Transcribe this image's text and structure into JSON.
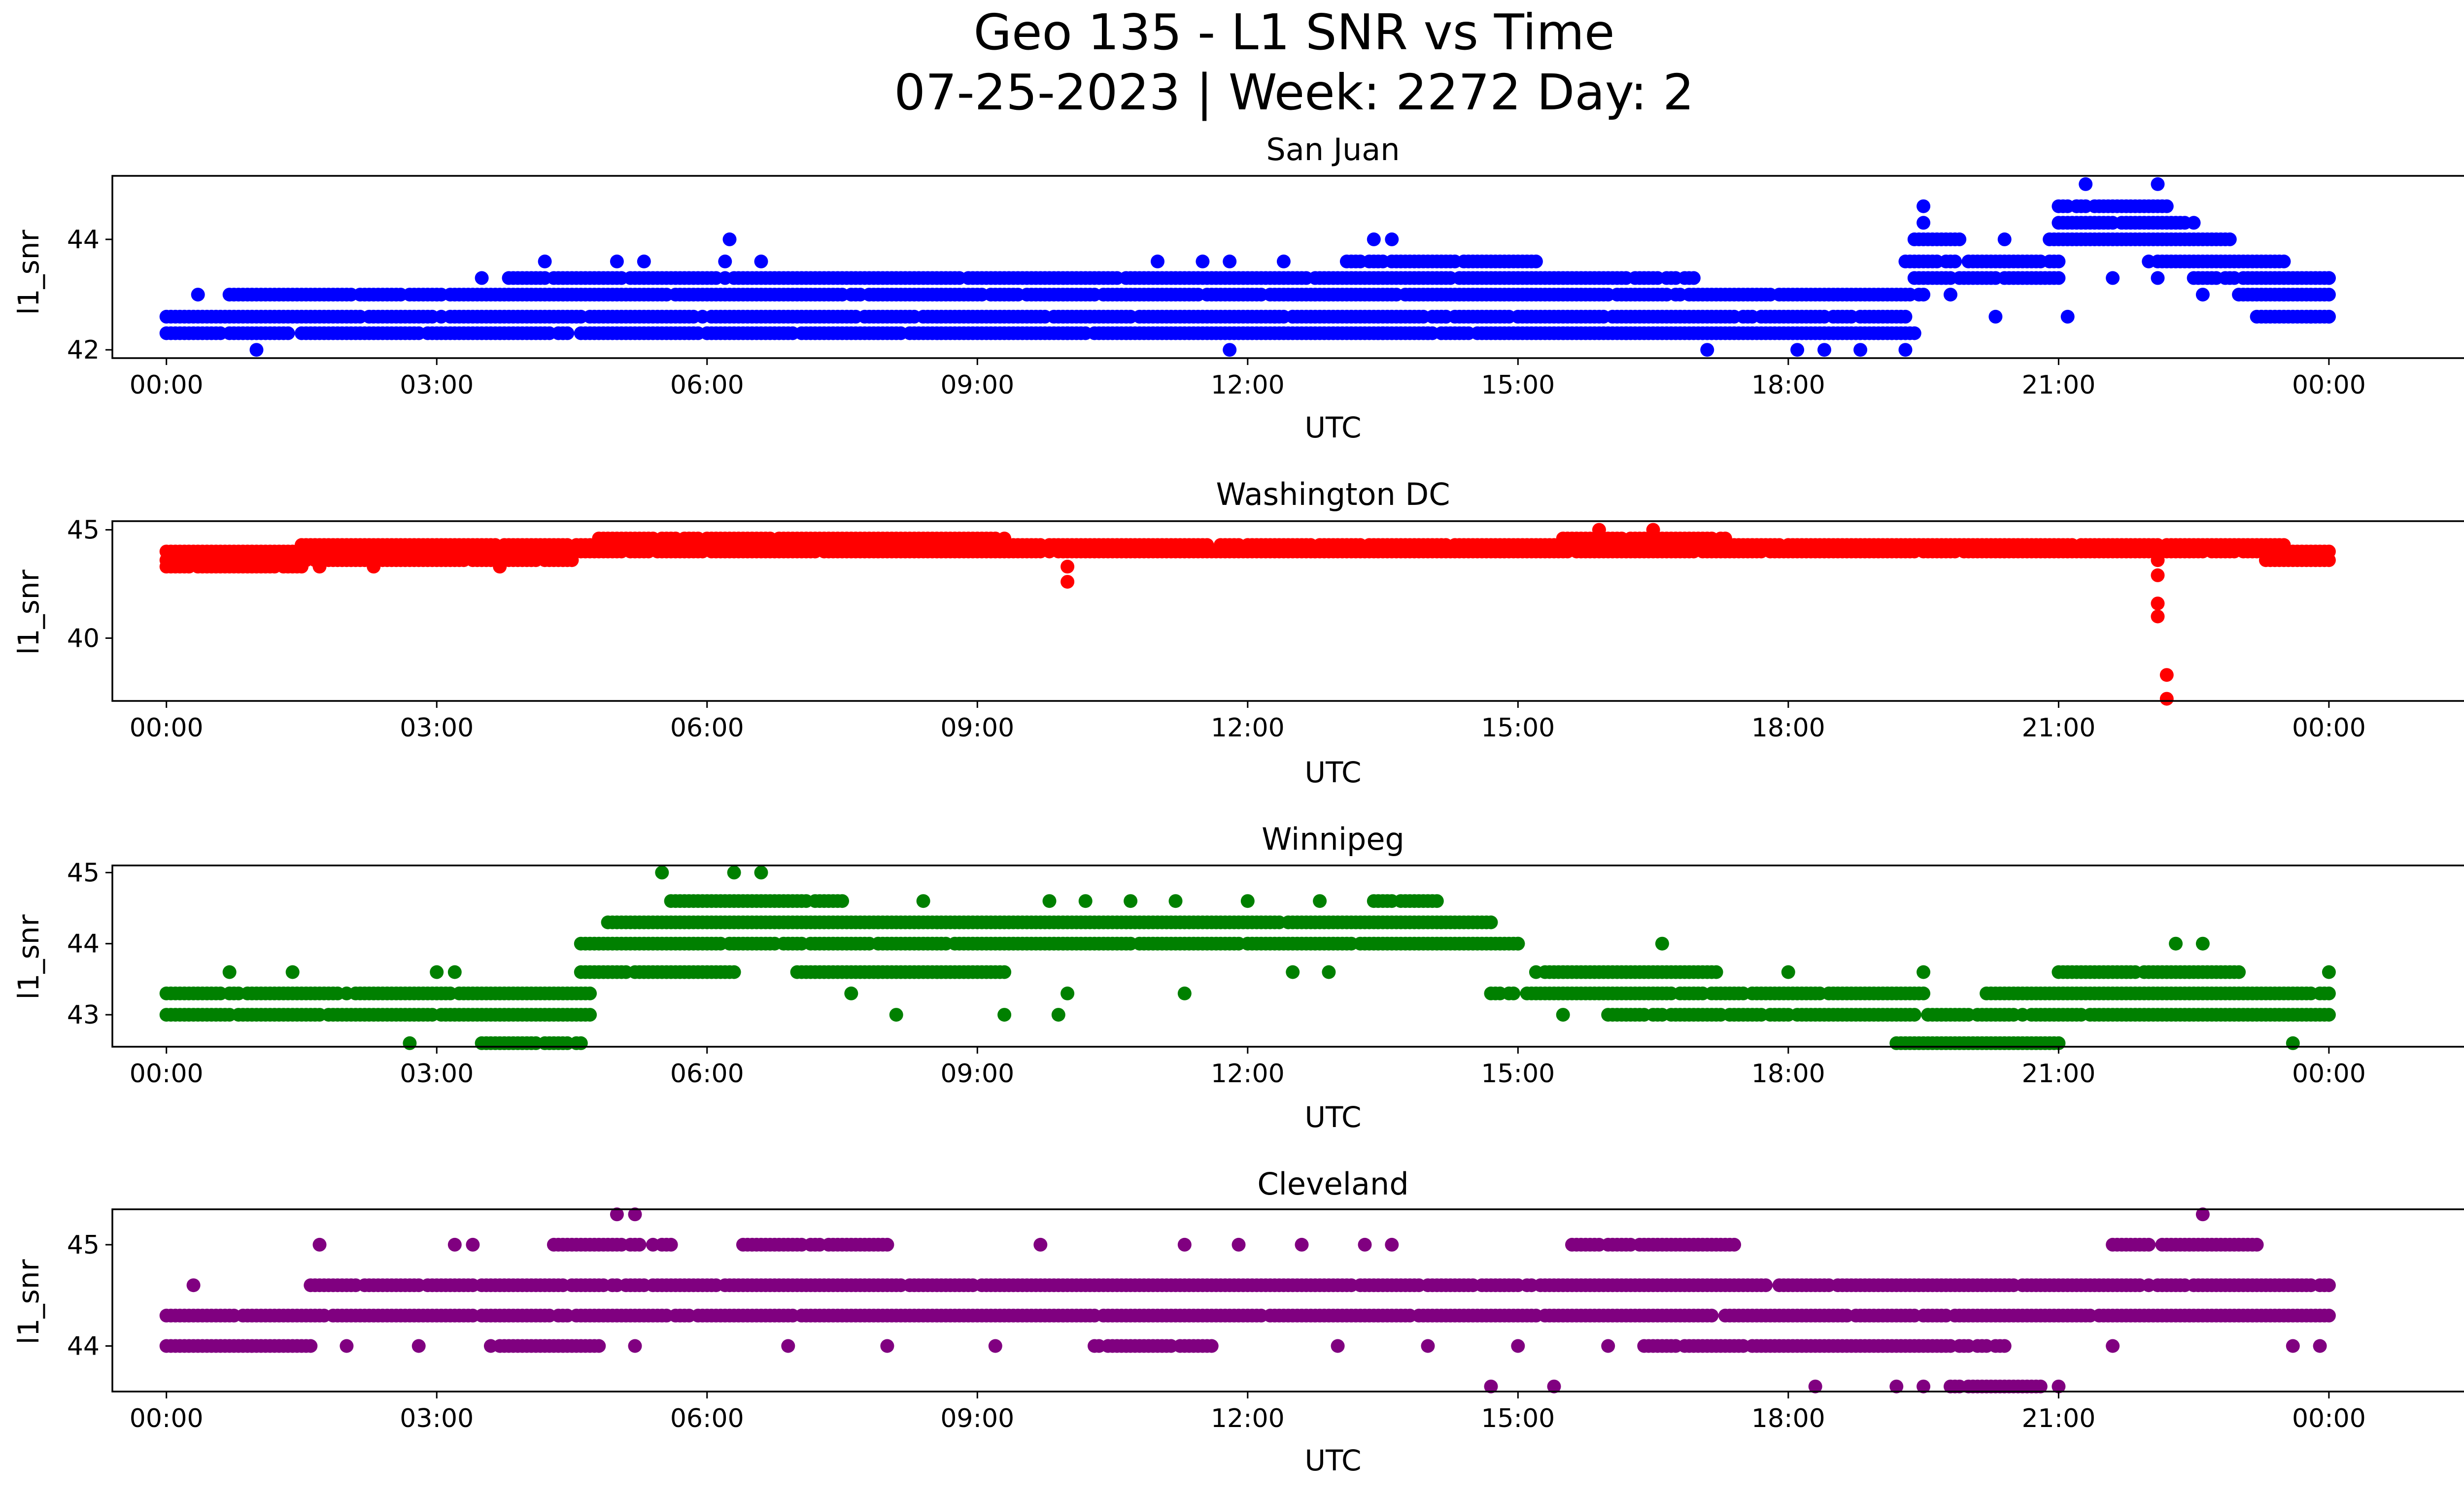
{
  "figure": {
    "title_line1": "Geo 135 - L1 SNR vs Time",
    "title_line2": "07-25-2023 | Week: 2272 Day: 2"
  },
  "chart_data": [
    {
      "type": "scatter",
      "title": "San Juan",
      "xlabel": "UTC",
      "ylabel": "l1_snr",
      "color": "#0000ff",
      "xlim": [
        -0.6,
        26.5
      ],
      "ylim": [
        41.85,
        45.15
      ],
      "xticks": [
        "00:00",
        "03:00",
        "06:00",
        "09:00",
        "12:00",
        "15:00",
        "18:00",
        "21:00",
        "00:00"
      ],
      "xtick_values": [
        0,
        3,
        6,
        9,
        12,
        15,
        18,
        21,
        24
      ],
      "yticks": [
        42,
        44
      ],
      "levels": [
        42.3,
        42.6,
        43.0,
        43.3,
        43.6,
        44.0,
        44.3,
        44.6,
        45.0
      ],
      "bands": [
        {
          "y": 42.3,
          "from": 0.0,
          "to": 19.4
        },
        {
          "y": 42.6,
          "from": 0.0,
          "to": 19.3
        },
        {
          "y": 42.6,
          "from": 23.2,
          "to": 24.0
        },
        {
          "y": 43.0,
          "from": 0.7,
          "to": 19.5
        },
        {
          "y": 43.0,
          "from": 23.0,
          "to": 24.0
        },
        {
          "y": 43.3,
          "from": 3.8,
          "to": 17.0
        },
        {
          "y": 43.3,
          "from": 19.4,
          "to": 21.0
        },
        {
          "y": 43.3,
          "from": 22.5,
          "to": 24.0
        },
        {
          "y": 43.6,
          "from": 13.1,
          "to": 15.2
        },
        {
          "y": 43.6,
          "from": 19.3,
          "to": 21.0
        },
        {
          "y": 43.6,
          "from": 22.0,
          "to": 23.5
        },
        {
          "y": 44.0,
          "from": 19.4,
          "to": 19.9
        },
        {
          "y": 44.0,
          "from": 20.9,
          "to": 22.9
        },
        {
          "y": 44.3,
          "from": 21.0,
          "to": 22.4
        },
        {
          "y": 44.6,
          "from": 21.0,
          "to": 22.2
        }
      ],
      "points": [
        [
          0.35,
          43.0
        ],
        [
          1.0,
          42.0
        ],
        [
          3.5,
          43.3
        ],
        [
          4.2,
          43.6
        ],
        [
          5.0,
          43.6
        ],
        [
          5.3,
          43.6
        ],
        [
          5.3,
          42.3
        ],
        [
          6.0,
          42.3
        ],
        [
          6.25,
          44.0
        ],
        [
          6.2,
          43.6
        ],
        [
          6.6,
          43.6
        ],
        [
          10.0,
          42.3
        ],
        [
          11.0,
          43.6
        ],
        [
          11.5,
          43.6
        ],
        [
          11.8,
          42.0
        ],
        [
          11.8,
          43.6
        ],
        [
          12.3,
          42.6
        ],
        [
          12.5,
          42.6
        ],
        [
          12.4,
          43.6
        ],
        [
          13.4,
          44.0
        ],
        [
          13.6,
          44.0
        ],
        [
          13.5,
          42.3
        ],
        [
          14.0,
          42.3
        ],
        [
          14.2,
          42.6
        ],
        [
          16.2,
          42.3
        ],
        [
          17.1,
          42.0
        ],
        [
          18.1,
          42.0
        ],
        [
          18.4,
          42.0
        ],
        [
          18.8,
          42.0
        ],
        [
          19.3,
          42.0
        ],
        [
          19.5,
          44.6
        ],
        [
          19.5,
          44.3
        ],
        [
          19.8,
          43.0
        ],
        [
          20.4,
          44.0
        ],
        [
          21.2,
          44.6
        ],
        [
          21.3,
          45.0
        ],
        [
          21.6,
          43.3
        ],
        [
          22.1,
          45.0
        ],
        [
          22.1,
          43.3
        ],
        [
          22.5,
          44.3
        ],
        [
          22.6,
          43.0
        ],
        [
          23.5,
          43.0
        ],
        [
          23.8,
          42.6
        ],
        [
          24.0,
          43.3
        ],
        [
          24.0,
          42.6
        ],
        [
          20.3,
          42.6
        ],
        [
          21.1,
          42.6
        ]
      ]
    },
    {
      "type": "scatter",
      "title": "Washington DC",
      "xlabel": "UTC",
      "ylabel": "l1_snr",
      "color": "#ff0000",
      "xlim": [
        -0.6,
        26.5
      ],
      "ylim": [
        37.1,
        45.4
      ],
      "xticks": [
        "00:00",
        "03:00",
        "06:00",
        "09:00",
        "12:00",
        "15:00",
        "18:00",
        "21:00",
        "00:00"
      ],
      "xtick_values": [
        0,
        3,
        6,
        9,
        12,
        15,
        18,
        21,
        24
      ],
      "yticks": [
        40,
        45
      ],
      "levels": [
        43.3,
        43.6,
        44.0,
        44.3,
        44.6
      ],
      "bands": [
        {
          "y": 43.3,
          "from": 0.0,
          "to": 1.5
        },
        {
          "y": 43.6,
          "from": 0.0,
          "to": 4.5
        },
        {
          "y": 43.6,
          "from": 23.3,
          "to": 24.0
        },
        {
          "y": 44.0,
          "from": 0.0,
          "to": 24.0
        },
        {
          "y": 44.3,
          "from": 1.5,
          "to": 23.5
        },
        {
          "y": 44.6,
          "from": 4.8,
          "to": 9.3
        },
        {
          "y": 44.6,
          "from": 15.5,
          "to": 17.3
        }
      ],
      "points": [
        [
          10.0,
          42.6
        ],
        [
          10.0,
          43.3
        ],
        [
          15.9,
          45.0
        ],
        [
          16.5,
          45.0
        ],
        [
          22.1,
          43.6
        ],
        [
          22.1,
          42.9
        ],
        [
          22.1,
          41.6
        ],
        [
          22.1,
          41.0
        ],
        [
          22.2,
          38.3
        ],
        [
          22.2,
          37.2
        ],
        [
          1.7,
          43.3
        ],
        [
          2.3,
          43.3
        ],
        [
          3.7,
          43.3
        ]
      ]
    },
    {
      "type": "scatter",
      "title": "Winnipeg",
      "xlabel": "UTC",
      "ylabel": "l1_snr",
      "color": "#008000",
      "xlim": [
        -0.6,
        26.5
      ],
      "ylim": [
        42.55,
        45.1
      ],
      "xticks": [
        "00:00",
        "03:00",
        "06:00",
        "09:00",
        "12:00",
        "15:00",
        "18:00",
        "21:00",
        "00:00"
      ],
      "xtick_values": [
        0,
        3,
        6,
        9,
        12,
        15,
        18,
        21,
        24
      ],
      "yticks": [
        43,
        44,
        45
      ],
      "levels": [
        42.6,
        43.0,
        43.3,
        43.6,
        44.0,
        44.3,
        44.6,
        45.0
      ],
      "bands": [
        {
          "y": 42.6,
          "from": 3.5,
          "to": 4.6
        },
        {
          "y": 42.6,
          "from": 19.2,
          "to": 21.0
        },
        {
          "y": 43.0,
          "from": 0.0,
          "to": 4.7
        },
        {
          "y": 43.0,
          "from": 16.0,
          "to": 24.0
        },
        {
          "y": 43.3,
          "from": 0.0,
          "to": 4.7
        },
        {
          "y": 43.3,
          "from": 14.7,
          "to": 19.5
        },
        {
          "y": 43.3,
          "from": 20.2,
          "to": 24.0
        },
        {
          "y": 43.6,
          "from": 4.6,
          "to": 6.3
        },
        {
          "y": 43.6,
          "from": 7.0,
          "to": 9.3
        },
        {
          "y": 43.6,
          "from": 15.2,
          "to": 17.2
        },
        {
          "y": 43.6,
          "from": 21.0,
          "to": 23.0
        },
        {
          "y": 44.0,
          "from": 4.6,
          "to": 15.0
        },
        {
          "y": 44.3,
          "from": 4.9,
          "to": 14.7
        },
        {
          "y": 44.6,
          "from": 5.6,
          "to": 7.5
        },
        {
          "y": 44.6,
          "from": 13.4,
          "to": 14.1
        }
      ],
      "points": [
        [
          0.7,
          43.6
        ],
        [
          1.4,
          43.6
        ],
        [
          2.7,
          42.6
        ],
        [
          3.0,
          43.6
        ],
        [
          3.2,
          43.6
        ],
        [
          5.5,
          45.0
        ],
        [
          6.3,
          45.0
        ],
        [
          6.6,
          45.0
        ],
        [
          8.4,
          44.6
        ],
        [
          9.8,
          44.6
        ],
        [
          10.2,
          44.6
        ],
        [
          10.7,
          44.6
        ],
        [
          11.2,
          44.6
        ],
        [
          12.0,
          44.6
        ],
        [
          12.8,
          44.6
        ],
        [
          8.1,
          43.0
        ],
        [
          9.3,
          43.0
        ],
        [
          9.9,
          43.0
        ],
        [
          10.0,
          43.3
        ],
        [
          7.6,
          43.3
        ],
        [
          11.3,
          43.3
        ],
        [
          12.5,
          43.6
        ],
        [
          12.9,
          43.6
        ],
        [
          15.0,
          44.0
        ],
        [
          15.5,
          43.0
        ],
        [
          16.6,
          44.0
        ],
        [
          22.3,
          44.0
        ],
        [
          22.6,
          44.0
        ],
        [
          23.6,
          42.6
        ],
        [
          24.0,
          43.6
        ],
        [
          18.0,
          43.6
        ],
        [
          19.5,
          43.6
        ]
      ]
    },
    {
      "type": "scatter",
      "title": "Cleveland",
      "xlabel": "UTC",
      "ylabel": "l1_snr",
      "color": "#800080",
      "xlim": [
        -0.6,
        26.5
      ],
      "ylim": [
        43.55,
        45.35
      ],
      "xticks": [
        "00:00",
        "03:00",
        "06:00",
        "09:00",
        "12:00",
        "15:00",
        "18:00",
        "21:00",
        "00:00"
      ],
      "xtick_values": [
        0,
        3,
        6,
        9,
        12,
        15,
        18,
        21,
        24
      ],
      "yticks": [
        44,
        45
      ],
      "levels": [
        43.6,
        44.0,
        44.3,
        44.6,
        45.0
      ],
      "bands": [
        {
          "y": 44.0,
          "from": 0.0,
          "to": 1.6
        },
        {
          "y": 44.0,
          "from": 3.6,
          "to": 4.8
        },
        {
          "y": 44.0,
          "from": 10.3,
          "to": 11.6
        },
        {
          "y": 44.0,
          "from": 16.4,
          "to": 20.4
        },
        {
          "y": 44.3,
          "from": 0.0,
          "to": 24.0
        },
        {
          "y": 44.6,
          "from": 1.6,
          "to": 24.0
        },
        {
          "y": 45.0,
          "from": 4.3,
          "to": 5.6
        },
        {
          "y": 45.0,
          "from": 6.4,
          "to": 8.0
        },
        {
          "y": 45.0,
          "from": 15.6,
          "to": 17.4
        },
        {
          "y": 45.0,
          "from": 21.6,
          "to": 23.2
        },
        {
          "y": 43.6,
          "from": 19.8,
          "to": 20.8
        }
      ],
      "points": [
        [
          0.3,
          44.6
        ],
        [
          1.7,
          45.0
        ],
        [
          3.2,
          45.0
        ],
        [
          3.4,
          45.0
        ],
        [
          5.0,
          45.3
        ],
        [
          5.2,
          45.3
        ],
        [
          5.2,
          44.0
        ],
        [
          9.2,
          44.0
        ],
        [
          9.7,
          45.0
        ],
        [
          11.3,
          45.0
        ],
        [
          11.9,
          45.0
        ],
        [
          12.6,
          45.0
        ],
        [
          13.3,
          45.0
        ],
        [
          13.6,
          45.0
        ],
        [
          14.7,
          43.6
        ],
        [
          15.4,
          43.6
        ],
        [
          15.0,
          44.0
        ],
        [
          13.0,
          44.0
        ],
        [
          18.3,
          43.6
        ],
        [
          19.2,
          43.6
        ],
        [
          19.5,
          43.6
        ],
        [
          21.0,
          43.6
        ],
        [
          22.6,
          45.3
        ],
        [
          23.6,
          44.0
        ],
        [
          23.9,
          44.0
        ],
        [
          2.0,
          44.0
        ],
        [
          2.8,
          44.0
        ],
        [
          6.9,
          44.0
        ],
        [
          8.0,
          44.0
        ],
        [
          14.0,
          44.0
        ],
        [
          16.0,
          44.0
        ],
        [
          21.6,
          44.0
        ]
      ]
    }
  ]
}
